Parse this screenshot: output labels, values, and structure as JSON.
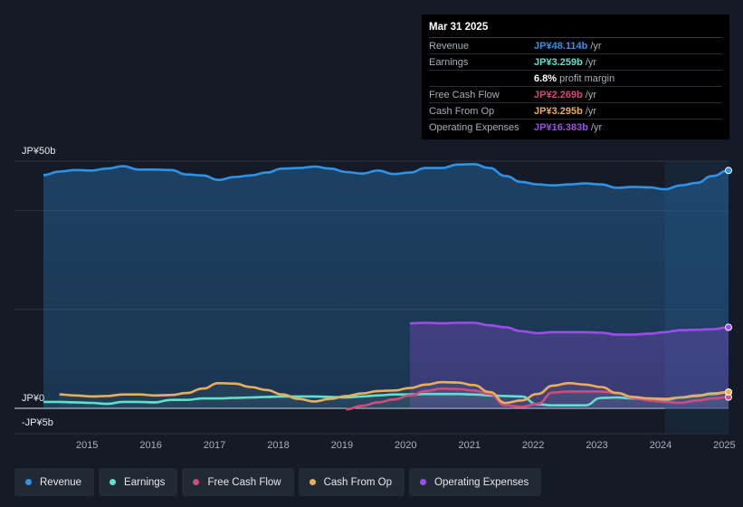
{
  "colors": {
    "revenue": "#2e93e6",
    "earnings": "#5fe0cf",
    "fcf": "#cf4d7e",
    "cfo": "#e8ae5c",
    "opex": "#9b4ee6"
  },
  "tooltip": {
    "date": "Mar 31 2025",
    "rows": [
      {
        "label": "Revenue",
        "value": "JP¥48.114b",
        "unit": "/yr",
        "color": "#2e93e6"
      },
      {
        "label": "Earnings",
        "value": "JP¥3.259b",
        "unit": "/yr",
        "color": "#5fe0cf"
      },
      {
        "label": "",
        "value": "6.8%",
        "unit": "profit margin",
        "color": "#ffffff"
      },
      {
        "label": "Free Cash Flow",
        "value": "JP¥2.269b",
        "unit": "/yr",
        "color": "#cf4d7e"
      },
      {
        "label": "Cash From Op",
        "value": "JP¥3.295b",
        "unit": "/yr",
        "color": "#e8ae5c"
      },
      {
        "label": "Operating Expenses",
        "value": "JP¥16.383b",
        "unit": "/yr",
        "color": "#9b4ee6"
      }
    ]
  },
  "legend": [
    {
      "label": "Revenue",
      "color": "#2e93e6"
    },
    {
      "label": "Earnings",
      "color": "#5fe0cf"
    },
    {
      "label": "Free Cash Flow",
      "color": "#cf4d7e"
    },
    {
      "label": "Cash From Op",
      "color": "#e8ae5c"
    },
    {
      "label": "Operating Expenses",
      "color": "#9b4ee6"
    }
  ],
  "chart_data": {
    "type": "area",
    "title": "",
    "xlabel": "",
    "ylabel": "",
    "y_axis_labels": [
      "JP¥50b",
      "JP¥0",
      "-JP¥5b"
    ],
    "x_tick_labels": [
      "2015",
      "2016",
      "2017",
      "2018",
      "2019",
      "2020",
      "2021",
      "2022",
      "2023",
      "2024",
      "2025"
    ],
    "x_ticks": [
      2015,
      2016,
      2017,
      2018,
      2019,
      2020,
      2021,
      2022,
      2023,
      2024,
      2025
    ],
    "xlim": [
      2014.5,
      2025.25
    ],
    "ylim": [
      -5,
      50
    ],
    "highlight_from": 2024.25,
    "series": [
      {
        "name": "Revenue",
        "key": "revenue",
        "x": [
          2014.5,
          2014.75,
          2015.0,
          2015.25,
          2015.5,
          2015.75,
          2016.0,
          2016.25,
          2016.5,
          2016.75,
          2017.0,
          2017.25,
          2017.5,
          2017.75,
          2018.0,
          2018.25,
          2018.5,
          2018.75,
          2019.0,
          2019.25,
          2019.5,
          2019.75,
          2020.0,
          2020.25,
          2020.5,
          2020.75,
          2021.0,
          2021.25,
          2021.5,
          2021.75,
          2022.0,
          2022.25,
          2022.5,
          2022.75,
          2023.0,
          2023.25,
          2023.5,
          2023.75,
          2024.0,
          2024.25,
          2024.5,
          2024.75,
          2025.0,
          2025.25
        ],
        "values": [
          47.2,
          47.9,
          48.2,
          48.1,
          48.5,
          49.0,
          48.3,
          48.3,
          48.2,
          47.3,
          47.1,
          46.2,
          46.8,
          47.1,
          47.7,
          48.5,
          48.6,
          48.9,
          48.5,
          47.8,
          47.5,
          48.1,
          47.4,
          47.7,
          48.6,
          48.6,
          49.3,
          49.4,
          48.6,
          47.0,
          45.8,
          45.3,
          45.1,
          45.3,
          45.5,
          45.3,
          44.6,
          44.8,
          44.7,
          44.3,
          45.1,
          45.6,
          47.0,
          48.114
        ]
      },
      {
        "name": "Operating Expenses",
        "key": "opex",
        "x": [
          2020.25,
          2020.5,
          2020.75,
          2021.0,
          2021.25,
          2021.5,
          2021.75,
          2022.0,
          2022.25,
          2022.5,
          2022.75,
          2023.0,
          2023.25,
          2023.5,
          2023.75,
          2024.0,
          2024.25,
          2024.5,
          2024.75,
          2025.0,
          2025.25
        ],
        "values": [
          17.2,
          17.3,
          17.2,
          17.3,
          17.3,
          16.8,
          16.4,
          15.6,
          15.2,
          15.4,
          15.4,
          15.4,
          15.3,
          14.9,
          14.9,
          15.1,
          15.4,
          15.8,
          15.9,
          16.0,
          16.383
        ]
      },
      {
        "name": "Earnings",
        "key": "earnings",
        "x": [
          2014.5,
          2014.75,
          2015.0,
          2015.25,
          2015.5,
          2015.75,
          2016.0,
          2016.25,
          2016.5,
          2016.75,
          2017.0,
          2017.25,
          2017.5,
          2017.75,
          2018.0,
          2018.25,
          2018.5,
          2018.75,
          2019.0,
          2019.25,
          2019.5,
          2019.75,
          2020.0,
          2020.25,
          2020.5,
          2020.75,
          2021.0,
          2021.25,
          2021.5,
          2021.75,
          2022.0,
          2022.25,
          2022.5,
          2022.75,
          2023.0,
          2023.25,
          2023.5,
          2023.75,
          2024.0,
          2024.25,
          2024.5,
          2024.75,
          2025.0,
          2025.25
        ],
        "values": [
          1.3,
          1.3,
          1.2,
          1.1,
          0.9,
          1.3,
          1.3,
          1.2,
          1.7,
          1.7,
          2.0,
          2.0,
          2.1,
          2.2,
          2.3,
          2.4,
          2.4,
          2.4,
          2.3,
          2.2,
          2.4,
          2.6,
          2.8,
          2.8,
          2.9,
          2.9,
          2.9,
          2.8,
          2.6,
          2.5,
          2.4,
          0.8,
          0.6,
          0.6,
          0.6,
          2.1,
          2.2,
          2.0,
          1.8,
          1.7,
          2.2,
          2.5,
          2.9,
          3.259
        ]
      },
      {
        "name": "Free Cash Flow",
        "key": "fcf",
        "x": [
          2019.25,
          2019.5,
          2019.75,
          2020.0,
          2020.25,
          2020.5,
          2020.75,
          2021.0,
          2021.25,
          2021.5,
          2021.75,
          2022.0,
          2022.25,
          2022.5,
          2022.75,
          2023.0,
          2023.25,
          2023.5,
          2023.75,
          2024.0,
          2024.25,
          2024.5,
          2024.75,
          2025.0,
          2025.25
        ],
        "values": [
          -0.2,
          0.5,
          1.2,
          1.8,
          2.6,
          3.5,
          4.0,
          3.9,
          3.6,
          2.9,
          0.6,
          0.3,
          0.9,
          3.2,
          3.4,
          3.4,
          3.4,
          3.1,
          2.1,
          1.6,
          1.3,
          1.1,
          1.6,
          2.0,
          2.269
        ]
      },
      {
        "name": "Cash From Op",
        "key": "cfo",
        "x": [
          2014.75,
          2015.0,
          2015.25,
          2015.5,
          2015.75,
          2016.0,
          2016.25,
          2016.5,
          2016.75,
          2017.0,
          2017.25,
          2017.5,
          2017.75,
          2018.0,
          2018.25,
          2018.5,
          2018.75,
          2019.0,
          2019.25,
          2019.5,
          2019.75,
          2020.0,
          2020.25,
          2020.5,
          2020.75,
          2021.0,
          2021.25,
          2021.5,
          2021.75,
          2022.0,
          2022.25,
          2022.5,
          2022.75,
          2023.0,
          2023.25,
          2023.5,
          2023.75,
          2024.0,
          2024.25,
          2024.5,
          2024.75,
          2025.0,
          2025.25
        ],
        "values": [
          2.8,
          2.6,
          2.4,
          2.5,
          2.8,
          2.8,
          2.6,
          2.7,
          3.1,
          4.0,
          5.1,
          5.0,
          4.3,
          3.7,
          2.8,
          1.9,
          1.4,
          1.9,
          2.5,
          3.0,
          3.5,
          3.6,
          4.1,
          4.8,
          5.3,
          5.2,
          4.7,
          3.3,
          1.1,
          1.6,
          2.9,
          4.6,
          5.1,
          4.8,
          4.3,
          3.1,
          2.3,
          2.0,
          1.9,
          2.2,
          2.6,
          3.0,
          3.295
        ]
      }
    ]
  }
}
